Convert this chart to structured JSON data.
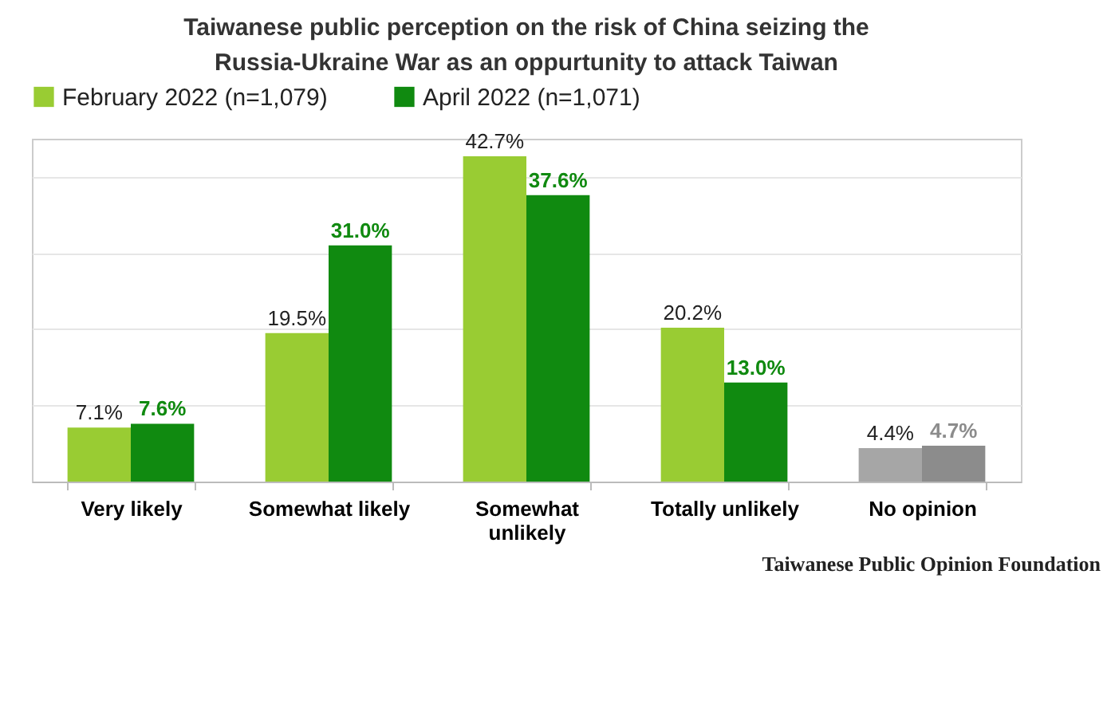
{
  "chart_data": {
    "type": "bar",
    "title": "Taiwanese public perception on the risk of China seizing the Russia-Ukraine War as an oppurtunity to attack Taiwan",
    "categories": [
      "Very likely",
      "Somewhat likely",
      "Somewhat unlikely",
      "Totally unlikely",
      "No opinion"
    ],
    "series": [
      {
        "name": "February 2022 (n=1,079)",
        "color": "#99cc33",
        "colors": [
          "#99cc33",
          "#99cc33",
          "#99cc33",
          "#99cc33",
          "#a6a6a6"
        ],
        "values": [
          7.1,
          19.5,
          42.7,
          20.2,
          4.4
        ],
        "value_labels": [
          "7.1%",
          "19.5%",
          "42.7%",
          "20.2%",
          "4.4%"
        ]
      },
      {
        "name": "April 2022 (n=1,071)",
        "color": "#108a10",
        "colors": [
          "#108a10",
          "#108a10",
          "#108a10",
          "#108a10",
          "#8c8c8c"
        ],
        "values": [
          7.6,
          31.0,
          37.6,
          13.0,
          4.7
        ],
        "value_labels": [
          "7.6%",
          "31.0%",
          "37.6%",
          "13.0%",
          "4.7%"
        ]
      }
    ],
    "tick_labels": "x",
    "grid": "y",
    "legend": "top",
    "annotations": [
      "Taiwanese Public Opinion Foundation"
    ]
  }
}
